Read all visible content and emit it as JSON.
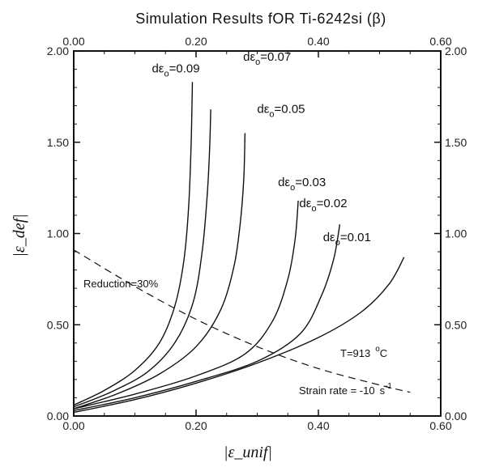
{
  "chart_data": {
    "type": "line",
    "title": "Simulation Results fOR Ti-6242si (β)",
    "xlabel": "|ε_unif|",
    "ylabel": "|ε_def|",
    "xlim": [
      0,
      0.6
    ],
    "ylim": [
      0,
      2.0
    ],
    "x_ticks": [
      "0.00",
      "0.20",
      "0.40",
      "0.60"
    ],
    "y_ticks": [
      "0.00",
      "0.50",
      "1.00",
      "1.50",
      "2.00"
    ],
    "grid": false,
    "series": [
      {
        "name": "dε_o=0.09",
        "label_main": "dε",
        "label_sub": "o",
        "label_value": "=0.09",
        "x": [
          0.0,
          0.05,
          0.1,
          0.14,
          0.165,
          0.18,
          0.188,
          0.192,
          0.194
        ],
        "y": [
          0.06,
          0.14,
          0.25,
          0.4,
          0.6,
          0.85,
          1.15,
          1.5,
          1.83
        ]
      },
      {
        "name": "dε_o=0.07",
        "label_main": "dε",
        "label_sub": "o",
        "label_value": "=0.07",
        "x": [
          0.0,
          0.06,
          0.12,
          0.165,
          0.195,
          0.21,
          0.218,
          0.222,
          0.224
        ],
        "y": [
          0.05,
          0.13,
          0.24,
          0.4,
          0.62,
          0.9,
          1.2,
          1.45,
          1.68
        ]
      },
      {
        "name": "dε_o=0.05",
        "label_main": "dε",
        "label_sub": "o",
        "label_value": "=0.05",
        "x": [
          0.0,
          0.07,
          0.14,
          0.2,
          0.24,
          0.262,
          0.272,
          0.278,
          0.28
        ],
        "y": [
          0.04,
          0.12,
          0.23,
          0.38,
          0.58,
          0.82,
          1.05,
          1.3,
          1.55
        ]
      },
      {
        "name": "dε_o=0.03",
        "label_main": "dε",
        "label_sub": "o",
        "label_value": "=0.03",
        "x": [
          0.0,
          0.1,
          0.2,
          0.28,
          0.325,
          0.35,
          0.362,
          0.367
        ],
        "y": [
          0.04,
          0.12,
          0.22,
          0.34,
          0.52,
          0.75,
          0.97,
          1.18
        ]
      },
      {
        "name": "dε_o=0.02",
        "label_main": "dε",
        "label_sub": "o",
        "label_value": "=0.02",
        "x": [
          0.0,
          0.1,
          0.2,
          0.3,
          0.37,
          0.405,
          0.425,
          0.435
        ],
        "y": [
          0.03,
          0.1,
          0.19,
          0.3,
          0.45,
          0.66,
          0.86,
          1.05
        ]
      },
      {
        "name": "dε_o=0.01",
        "label_main": "dε",
        "label_sub": "o",
        "label_value": "=0.01",
        "x": [
          0.0,
          0.1,
          0.2,
          0.3,
          0.4,
          0.47,
          0.515,
          0.54
        ],
        "y": [
          0.02,
          0.09,
          0.18,
          0.29,
          0.43,
          0.57,
          0.72,
          0.87
        ]
      }
    ],
    "reduction_line": {
      "name": "Reduction=30%",
      "x": [
        0.0,
        0.1,
        0.2,
        0.3,
        0.4,
        0.5,
        0.55
      ],
      "y": [
        0.91,
        0.71,
        0.53,
        0.38,
        0.26,
        0.17,
        0.13
      ]
    },
    "annotations": {
      "reduction": "Reduction=30%",
      "temperature_prefix": "T=913",
      "temperature_deg": "o",
      "temperature_unit": "C",
      "strain_rate_prefix": "Strain rate = -10",
      "strain_rate_unit": "s",
      "strain_rate_exp": "-1"
    }
  }
}
